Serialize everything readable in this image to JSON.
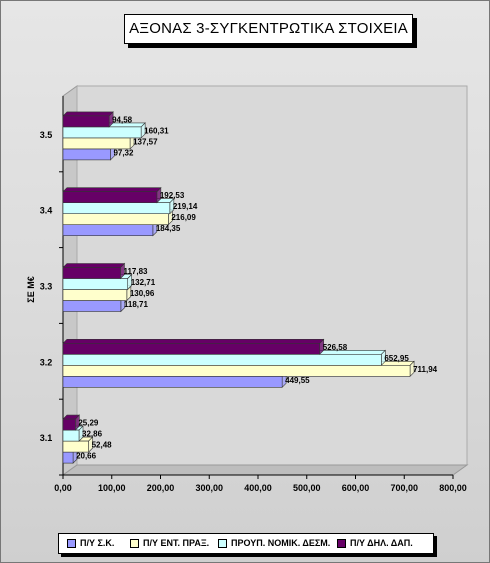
{
  "chart_data": {
    "type": "bar",
    "orientation": "horizontal",
    "title": "ΑΞΟΝΑΣ 3-ΣΥΓΚΕΝΤΡΩΤΙΚΑ ΣΤΟΙΧΕΙΑ",
    "xlabel": "",
    "ylabel": "ΣΕ Μ€",
    "xlim": [
      0,
      800
    ],
    "x_ticks": [
      "0,00",
      "100,00",
      "200,00",
      "300,00",
      "400,00",
      "500,00",
      "600,00",
      "700,00",
      "800,00"
    ],
    "categories": [
      "3.1",
      "3.2",
      "3.3",
      "3.4",
      "3.5"
    ],
    "series": [
      {
        "name": "Π/Υ Σ.Κ.",
        "color": "#9999ff",
        "values": [
          20.66,
          449.55,
          118.71,
          184.35,
          97.32
        ],
        "labels": [
          "20,66",
          "449,55",
          "118,71",
          "184,35",
          "97,32"
        ]
      },
      {
        "name": "Π/Υ ΕΝΤ. ΠΡΑΞ.",
        "color": "#ffffcc",
        "values": [
          52.48,
          711.94,
          130.96,
          216.09,
          137.57
        ],
        "labels": [
          "52,48",
          "711,94",
          "130,96",
          "216,09",
          "137,57"
        ]
      },
      {
        "name": "ΠΡΟΥΠ. ΝΟΜΙΚ. ΔΕΣΜ.",
        "color": "#ccffff",
        "values": [
          32.86,
          652.95,
          132.71,
          219.14,
          160.31
        ],
        "labels": [
          "32,86",
          "652,95",
          "132,71",
          "219,14",
          "160,31"
        ]
      },
      {
        "name": "Π/Υ ΔΗΛ. ΔΑΠ.",
        "color": "#660066",
        "values": [
          25.29,
          526.58,
          117.83,
          192.53,
          94.58
        ],
        "labels": [
          "25,29",
          "526,58",
          "117,83",
          "192,53",
          "94,58"
        ]
      }
    ],
    "legend": "bottom",
    "grid": false
  }
}
